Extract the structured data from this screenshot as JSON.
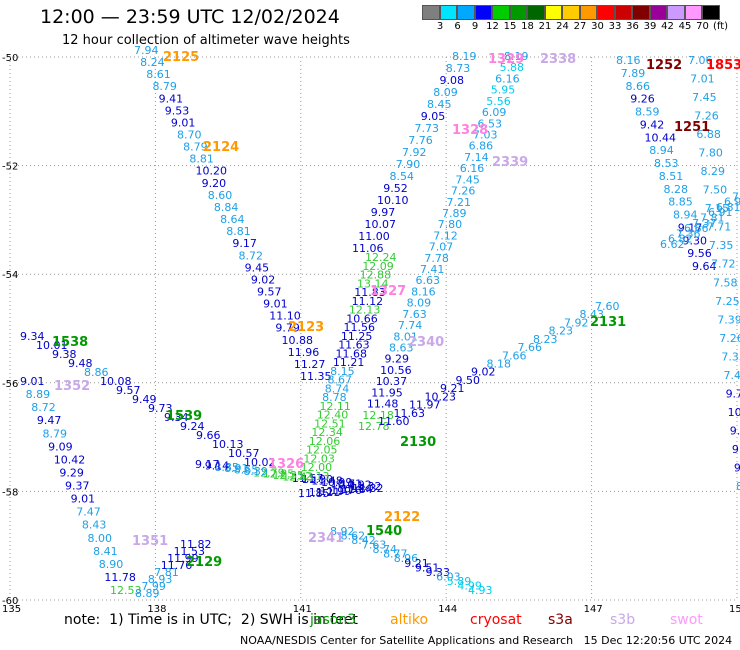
{
  "header": {
    "title": "12:00 — 23:59 UTC 12/02/2024",
    "subtitle": "12 hour collection of altimeter wave heights"
  },
  "legend": {
    "unit": "(ft)",
    "swatches": [
      {
        "color": "#7f7f7f",
        "label": "3"
      },
      {
        "color": "#00e5ff",
        "label": "6"
      },
      {
        "color": "#00a8ff",
        "label": "9"
      },
      {
        "color": "#0000ff",
        "label": "12"
      },
      {
        "color": "#00cc00",
        "label": "15"
      },
      {
        "color": "#009900",
        "label": "18"
      },
      {
        "color": "#006600",
        "label": "21"
      },
      {
        "color": "#ffff00",
        "label": "24"
      },
      {
        "color": "#ffcc00",
        "label": "27"
      },
      {
        "color": "#ff9900",
        "label": "30"
      },
      {
        "color": "#ff0000",
        "label": "33"
      },
      {
        "color": "#cc0000",
        "label": "36"
      },
      {
        "color": "#800000",
        "label": "39"
      },
      {
        "color": "#990099",
        "label": "42"
      },
      {
        "color": "#cc99ff",
        "label": "45"
      },
      {
        "color": "#ff99ff",
        "label": "70"
      },
      {
        "color": "#000000",
        "label": ""
      }
    ]
  },
  "axes": {
    "lat_ticks": [
      "-50",
      "-52",
      "-54",
      "-56",
      "-58",
      "-60"
    ],
    "lon_ticks": [
      "135",
      "138",
      "141",
      "144",
      "147",
      "150"
    ]
  },
  "passes": [
    {
      "label": "2125",
      "color": "#ff9900"
    },
    {
      "label": "2124",
      "color": "#ff9900"
    },
    {
      "label": "1538",
      "color": "#009900"
    },
    {
      "label": "1539",
      "color": "#009900"
    },
    {
      "label": "1352",
      "color": "#c8a8e8"
    },
    {
      "label": "1351",
      "color": "#c8a8e8"
    },
    {
      "label": "2129",
      "color": "#009900"
    },
    {
      "label": "2123",
      "color": "#ff9900"
    },
    {
      "label": "1326",
      "color": "#ff80e0"
    },
    {
      "label": "2130",
      "color": "#009900"
    },
    {
      "label": "2122",
      "color": "#ff9900"
    },
    {
      "label": "1540",
      "color": "#009900"
    },
    {
      "label": "2341",
      "color": "#c8a8e8"
    },
    {
      "label": "2340",
      "color": "#c8a8e8"
    },
    {
      "label": "1327",
      "color": "#ff80e0"
    },
    {
      "label": "2131",
      "color": "#009900"
    },
    {
      "label": "1329",
      "color": "#ff80e0"
    },
    {
      "label": "2338",
      "color": "#c8a8e8"
    },
    {
      "label": "1328",
      "color": "#ff80e0"
    },
    {
      "label": "2339",
      "color": "#c8a8e8"
    },
    {
      "label": "1252",
      "color": "#800000"
    },
    {
      "label": "1853",
      "color": "#ff0000"
    },
    {
      "label": "1251",
      "color": "#800000"
    }
  ],
  "tracks": {
    "t2125": [
      "7.94",
      "8.24",
      "8.61",
      "8.79",
      "9.41",
      "9.53",
      "9.01",
      "8.70",
      "8.79",
      "8.81",
      "10.20",
      "9.20",
      "8.60",
      "8.84",
      "8.64",
      "8.81",
      "9.17",
      "8.72",
      "9.45",
      "9.02",
      "9.57",
      "9.01",
      "11.10",
      "9.79",
      "10.88",
      "11.96",
      "11.27",
      "11.35"
    ],
    "t1538": [
      "9.34",
      "10.01",
      "9.38",
      "9.48",
      "8.86",
      "10.08",
      "9.57",
      "9.49",
      "9.73",
      "9.34",
      "9.24",
      "9.66",
      "10.13",
      "10.57",
      "10.02"
    ],
    "t1352": [
      "9.01",
      "8.89",
      "8.72",
      "9.47",
      "8.79",
      "9.09",
      "10.42",
      "9.29",
      "9.37",
      "9.01",
      "7.47",
      "8.43",
      "8.00",
      "8.41",
      "8.90",
      "11.78",
      "12.53"
    ],
    "t1329": [
      "8.19",
      "8.73",
      "9.08",
      "8.09",
      "8.45",
      "9.05",
      "7.73",
      "7.76",
      "7.92",
      "7.90",
      "8.54",
      "9.52",
      "10.10",
      "9.97",
      "10.07",
      "11.00",
      "11.06"
    ],
    "t2338": [
      "8.19",
      "5.88",
      "6.16",
      "5.95",
      "5.56",
      "6.09",
      "6.53",
      "7.03",
      "6.86",
      "7.14",
      "6.16",
      "7.45",
      "7.26",
      "7.21",
      "7.89",
      "7.80",
      "7.12",
      "7.07",
      "7.78",
      "7.41",
      "6.63",
      "8.16",
      "8.09",
      "7.63",
      "7.74",
      "8.01",
      "8.63",
      "9.29",
      "10.56",
      "10.37",
      "11.95",
      "11.48",
      "12.18",
      "12.78"
    ],
    "t1252": [
      "8.16",
      "7.89",
      "8.66",
      "9.26",
      "8.59",
      "9.42",
      "10.44",
      "8.94",
      "8.53",
      "8.51",
      "8.28",
      "8.85",
      "8.94",
      "9.17",
      "9.30",
      "9.56",
      "9.64"
    ],
    "t1853": [
      "7.06",
      "7.01",
      "7.45",
      "7.26",
      "6.88",
      "7.80",
      "8.29",
      "7.50",
      "7.15",
      "7.71",
      "7.35",
      "7.72",
      "7.58",
      "7.25",
      "7.39",
      "7.26",
      "7.33",
      "7.41",
      "9.76",
      "10.33",
      "9.47",
      "9.33",
      "9.1",
      "8.9"
    ],
    "t2131": [
      "7.60",
      "8.43",
      "7.92",
      "8.23",
      "8.23",
      "7.66",
      "7.66",
      "8.18",
      "9.02",
      "9.50",
      "9.21",
      "10.23",
      "11.97",
      "11.63",
      "11.60"
    ],
    "t2124": [
      "6.62",
      "6.82",
      "7.36",
      "6.66",
      "7.37",
      "7.81",
      "6.91",
      "6.81",
      "6.97",
      "7.81",
      "6.99"
    ],
    "t2341": [
      "8.92",
      "8.62",
      "8.42",
      "7.63",
      "8.74",
      "8.77",
      "8.96",
      "9.21",
      "9.51",
      "9.33",
      "6.03",
      "5.89",
      "4.99",
      "4.93"
    ],
    "t2122": [
      "11.32",
      "10.92",
      "10.71",
      "10.99",
      "11.48",
      "11.90",
      "11.57",
      "12.43",
      "12.35",
      "12.85",
      "12.79",
      "8.39",
      "8.65",
      "8.91",
      "8.85",
      "9.14",
      "9.17"
    ],
    "t2129": [
      "11.82",
      "11.53",
      "11.99",
      "11.76",
      "7.81",
      "8.93",
      "7.99",
      "8.89"
    ],
    "t2123": [
      "12.24",
      "12.09",
      "12.88",
      "13.14",
      "11.83",
      "11.12",
      "12.13",
      "10.66",
      "11.56",
      "11.25",
      "11.63",
      "11.68",
      "11.21",
      "8.15",
      "8.67",
      "8.74",
      "8.78",
      "12.11",
      "12.40",
      "12.51",
      "12.34",
      "12.06",
      "12.05",
      "12.03",
      "12.00",
      "12.13"
    ],
    "t1326": [
      "11.85",
      "11.21",
      "11.99",
      "11.76",
      "11.84",
      "11.32"
    ]
  },
  "footer": {
    "note": "note:  1) Time is in UTC;  2) SWH is in feet",
    "sats": [
      {
        "name": "jason3",
        "color": "#009900"
      },
      {
        "name": "altiko",
        "color": "#ff9900"
      },
      {
        "name": "cryosat",
        "color": "#ff0000"
      },
      {
        "name": "s3a",
        "color": "#800000"
      },
      {
        "name": "s3b",
        "color": "#c8a8e8"
      },
      {
        "name": "swot",
        "color": "#ff99ff"
      }
    ],
    "credit": "NOAA/NESDIS Center for Satellite Applications and Research   15 Dec 12:20:56 UTC 2024"
  }
}
